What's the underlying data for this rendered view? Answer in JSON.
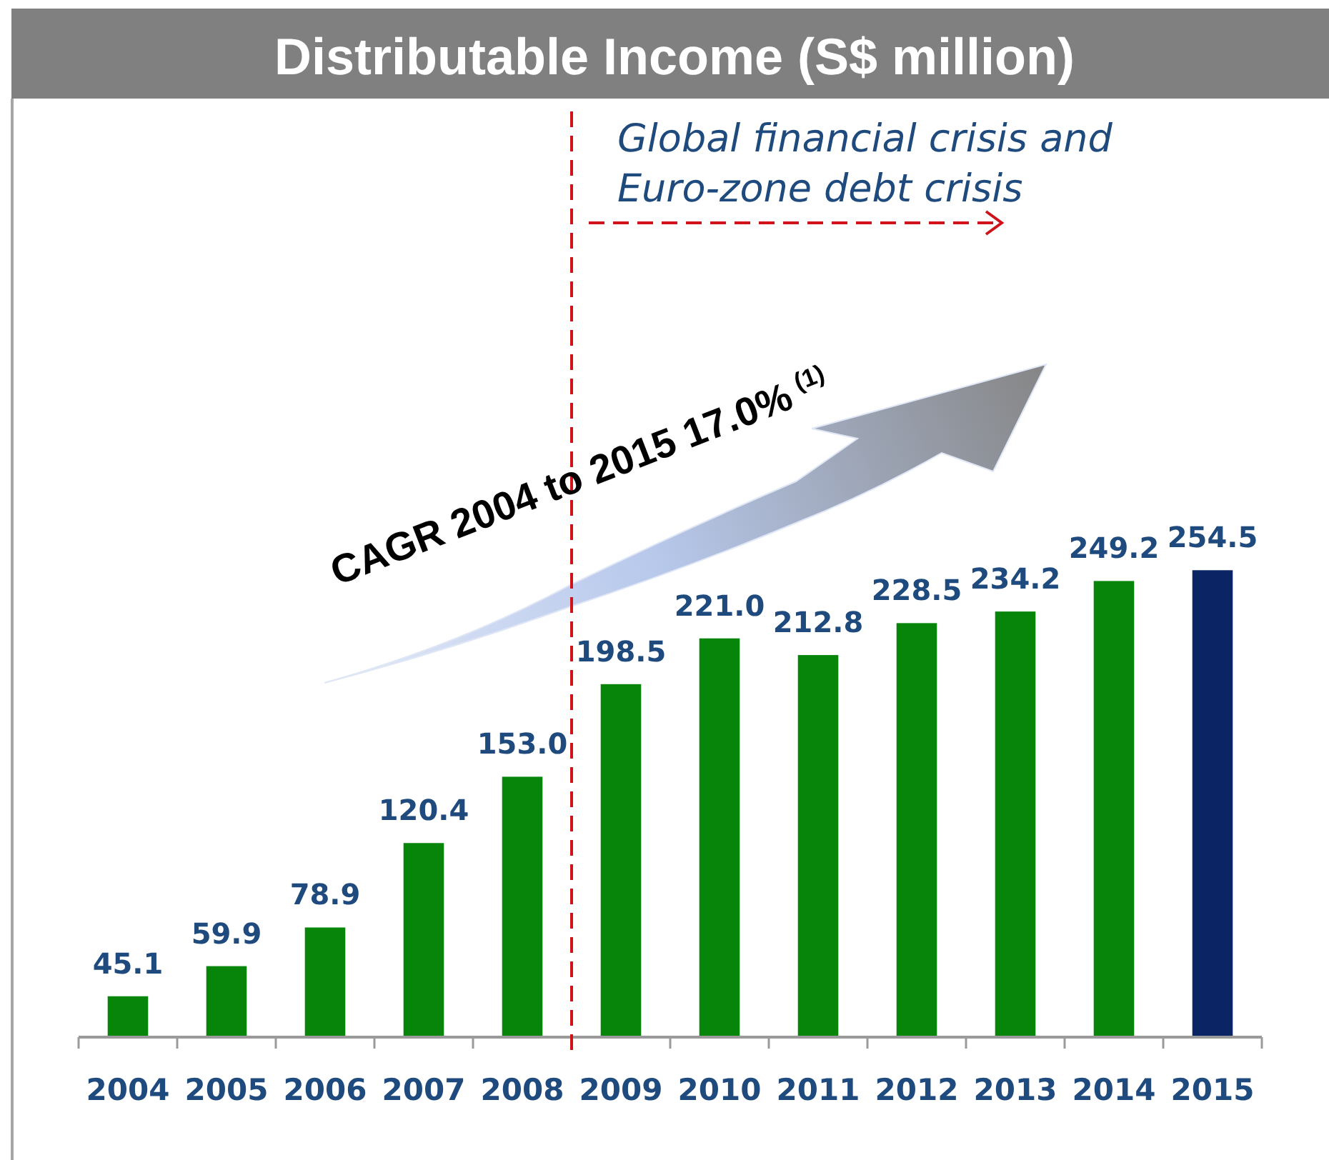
{
  "chart_data": {
    "type": "bar",
    "title": "Distributable Income (S$ million)",
    "categories": [
      "2004",
      "2005",
      "2006",
      "2007",
      "2008",
      "2009",
      "2010",
      "2011",
      "2012",
      "2013",
      "2014",
      "2015"
    ],
    "values": [
      45.1,
      59.9,
      78.9,
      120.4,
      153.0,
      198.5,
      221.0,
      212.8,
      228.5,
      234.2,
      249.2,
      254.5
    ],
    "value_labels": [
      "45.1",
      "59.9",
      "78.9",
      "120.4",
      "153.0",
      "198.5",
      "221.0",
      "212.8",
      "228.5",
      "234.2",
      "249.2",
      "254.5"
    ],
    "colors": [
      "#07850a",
      "#07850a",
      "#07850a",
      "#07850a",
      "#07850a",
      "#07850a",
      "#07850a",
      "#07850a",
      "#07850a",
      "#07850a",
      "#07850a",
      "#0b2463"
    ],
    "ylim": [
      25,
      480
    ],
    "tick_labels": "x",
    "ref_lines": [
      {
        "axis": "x",
        "value": "2009",
        "label": "Global financial crisis and\nEuro-zone debt crisis",
        "color": "#d0121b",
        "line_style": "dashed"
      }
    ],
    "annotations": [
      "CAGR 2004 to 2015 17.0%$^{(1)}$"
    ]
  }
}
